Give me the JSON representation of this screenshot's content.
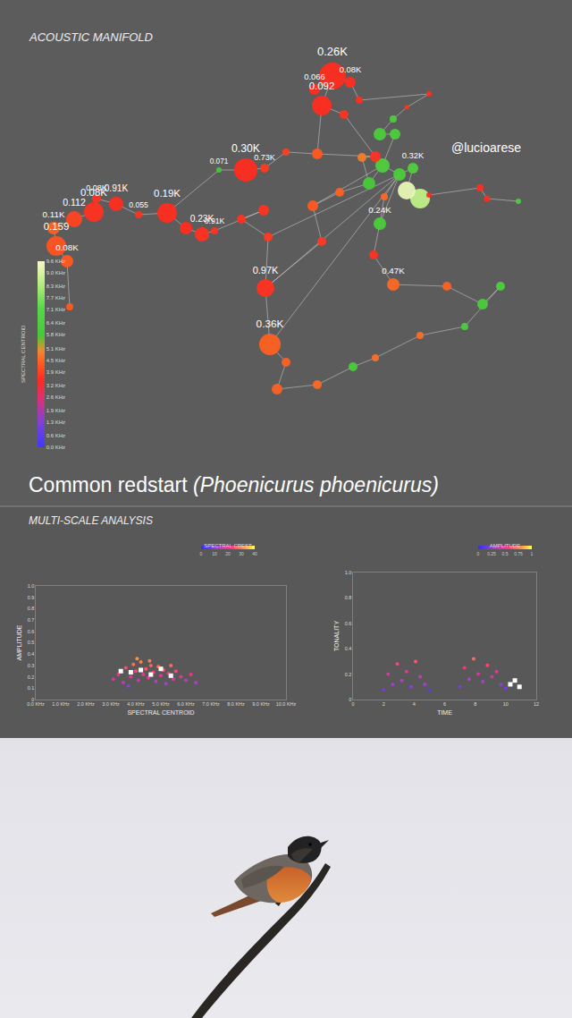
{
  "caption": [
    "Common redstart",
    "(Phoenicurus phoenicurus)"
  ],
  "section_title": "MULTI-SCALE ANALYSIS",
  "chart_data": [
    {
      "type": "network",
      "title": "ACOUSTIC MANIFOLD",
      "annotations": [
        "@lucioarese"
      ],
      "xlim": [
        0,
        640
      ],
      "ylim": [
        565,
        0
      ],
      "tick_labels": false,
      "grid": false,
      "x": [
        372,
        360,
        352,
        392,
        385,
        402,
        480,
        455,
        440,
        425,
        442,
        428,
        447,
        470,
        455,
        413,
        462,
        420,
        480,
        537,
        545,
        580,
        355,
        405,
        320,
        275,
        296,
        245,
        187,
        208,
        226,
        240,
        155,
        130,
        105,
        83,
        63,
        75,
        78,
        60,
        108,
        295,
        270,
        300,
        297,
        350,
        380,
        360,
        425,
        418,
        302,
        320,
        310,
        440,
        500,
        540,
        560,
        520,
        470,
        420,
        395,
        355,
        430
      ],
      "y": [
        85,
        118,
        100,
        92,
        128,
        112,
        105,
        120,
        133,
        150,
        150,
        185,
        195,
        222,
        213,
        205,
        188,
        175,
        218,
        210,
        222,
        225,
        172,
        176,
        170,
        190,
        188,
        190,
        238,
        255,
        262,
        258,
        240,
        228,
        237,
        245,
        275,
        292,
        343,
        255,
        222,
        235,
        245,
        265,
        322,
        230,
        215,
        270,
        250,
        285,
        385,
        405,
        435,
        318,
        320,
        340,
        320,
        365,
        375,
        400,
        410,
        430,
        220
      ],
      "sizes": [
        30,
        22,
        12,
        12,
        10,
        8,
        6,
        5,
        8,
        14,
        12,
        16,
        14,
        22,
        20,
        14,
        12,
        12,
        6,
        8,
        7,
        6,
        12,
        10,
        8,
        26,
        10,
        6,
        22,
        14,
        16,
        8,
        8,
        16,
        22,
        18,
        22,
        14,
        8,
        14,
        10,
        12,
        10,
        10,
        20,
        12,
        10,
        10,
        14,
        10,
        24,
        10,
        12,
        14,
        10,
        12,
        10,
        8,
        8,
        8,
        10,
        10,
        8
      ],
      "centroids": [
        3.5,
        3.5,
        3.5,
        3.5,
        3.6,
        3.5,
        3.5,
        3.6,
        6.2,
        6.0,
        6.1,
        6.3,
        6.0,
        8.6,
        9.3,
        5.8,
        6.4,
        3.6,
        3.4,
        3.5,
        3.5,
        6.0,
        4.3,
        4.8,
        3.8,
        3.5,
        3.7,
        5.8,
        3.5,
        3.5,
        3.6,
        3.6,
        3.6,
        3.5,
        3.6,
        3.9,
        4.2,
        4.3,
        4.3,
        4.4,
        3.6,
        3.6,
        3.6,
        3.7,
        3.6,
        4.3,
        4.4,
        3.7,
        6.0,
        3.6,
        4.4,
        4.4,
        4.4,
        4.5,
        4.4,
        6.0,
        6.2,
        6.0,
        4.6,
        4.6,
        6.0,
        4.5,
        4.5
      ],
      "labels": [
        "0.26K",
        "0.092",
        "0.066",
        "0.08K",
        null,
        null,
        null,
        null,
        null,
        null,
        null,
        null,
        null,
        null,
        null,
        null,
        "0.32K",
        null,
        null,
        null,
        null,
        null,
        null,
        null,
        null,
        "0.30K",
        "0.73K",
        "0.071",
        "0.19K",
        null,
        "0.23K",
        "0.91K",
        "0.055",
        "0.91K",
        "0.08K",
        "0.112",
        "0.159",
        "0.08K",
        null,
        "0.11K",
        "0.08K",
        null,
        null,
        null,
        "0.97K",
        null,
        null,
        null,
        "0.24K",
        null,
        "0.36K",
        null,
        null,
        "0.47K",
        null,
        null,
        null,
        null,
        null,
        null,
        null,
        null,
        null
      ],
      "edges": [
        [
          0,
          1
        ],
        [
          0,
          2
        ],
        [
          0,
          3
        ],
        [
          1,
          4
        ],
        [
          3,
          5
        ],
        [
          5,
          6
        ],
        [
          6,
          7
        ],
        [
          7,
          8
        ],
        [
          8,
          9
        ],
        [
          9,
          10
        ],
        [
          10,
          11
        ],
        [
          11,
          12
        ],
        [
          12,
          16
        ],
        [
          16,
          14
        ],
        [
          14,
          13
        ],
        [
          13,
          18
        ],
        [
          18,
          19
        ],
        [
          19,
          20
        ],
        [
          20,
          21
        ],
        [
          11,
          17
        ],
        [
          17,
          22
        ],
        [
          22,
          24
        ],
        [
          24,
          26
        ],
        [
          26,
          25
        ],
        [
          25,
          27
        ],
        [
          27,
          28
        ],
        [
          28,
          29
        ],
        [
          29,
          30
        ],
        [
          30,
          31
        ],
        [
          28,
          32
        ],
        [
          32,
          33
        ],
        [
          33,
          40
        ],
        [
          40,
          34
        ],
        [
          34,
          35
        ],
        [
          35,
          39
        ],
        [
          39,
          36
        ],
        [
          36,
          37
        ],
        [
          37,
          38
        ],
        [
          31,
          41
        ],
        [
          41,
          42
        ],
        [
          42,
          43
        ],
        [
          43,
          44
        ],
        [
          44,
          47
        ],
        [
          47,
          45
        ],
        [
          45,
          46
        ],
        [
          46,
          15
        ],
        [
          15,
          11
        ],
        [
          12,
          48
        ],
        [
          48,
          49
        ],
        [
          49,
          53
        ],
        [
          53,
          54
        ],
        [
          54,
          55
        ],
        [
          55,
          56
        ],
        [
          56,
          57
        ],
        [
          57,
          58
        ],
        [
          58,
          59
        ],
        [
          59,
          60
        ],
        [
          60,
          61
        ],
        [
          61,
          52
        ],
        [
          52,
          51
        ],
        [
          51,
          50
        ],
        [
          50,
          44
        ],
        [
          12,
          44
        ],
        [
          12,
          50
        ],
        [
          11,
          45
        ],
        [
          12,
          43
        ],
        [
          62,
          48
        ],
        [
          62,
          12
        ],
        [
          23,
          17
        ],
        [
          23,
          15
        ],
        [
          1,
          22
        ],
        [
          4,
          17
        ]
      ],
      "colorbar": {
        "title": "SPECTRAL CENTROID",
        "range": [
          0,
          9.6
        ],
        "ticks": [
          {
            "value": 0,
            "label": "0.0 KHz"
          },
          {
            "value": 0.6,
            "label": "0.6 KHz"
          },
          {
            "value": 1.3,
            "label": "1.3 KHz"
          },
          {
            "value": 1.9,
            "label": "1.9 KHz"
          },
          {
            "value": 2.6,
            "label": "2.6 KHz"
          },
          {
            "value": 3.2,
            "label": "3.2 KHz"
          },
          {
            "value": 3.9,
            "label": "3.9 KHz"
          },
          {
            "value": 4.5,
            "label": "4.5 KHz"
          },
          {
            "value": 5.1,
            "label": "5.1 KHz"
          },
          {
            "value": 5.8,
            "label": "5.8 KHz"
          },
          {
            "value": 6.4,
            "label": "6.4 KHz"
          },
          {
            "value": 7.1,
            "label": "7.1 KHz"
          },
          {
            "value": 7.7,
            "label": "7.7 KHz"
          },
          {
            "value": 8.3,
            "label": "8.3 KHz"
          },
          {
            "value": 9.0,
            "label": "9.0 KHz"
          },
          {
            "value": 9.6,
            "label": "9.6 KHz"
          }
        ]
      }
    },
    {
      "type": "scatter",
      "xlabel": "SPECTRAL CENTROID",
      "ylabel": "AMPLITUDE",
      "grid": false,
      "xlim": [
        0,
        10
      ],
      "xticks": [
        {
          "value": 0,
          "label": "0.0 KHz"
        },
        {
          "value": 1,
          "label": "1.0 KHz"
        },
        {
          "value": 2,
          "label": "2.0 KHz"
        },
        {
          "value": 3,
          "label": "3.0 KHz"
        },
        {
          "value": 4,
          "label": "4.0 KHz"
        },
        {
          "value": 5,
          "label": "5.0 KHz"
        },
        {
          "value": 6,
          "label": "6.0 KHz"
        },
        {
          "value": 7,
          "label": "7.0 KHz"
        },
        {
          "value": 8,
          "label": "8.0 KHz"
        },
        {
          "value": 9,
          "label": "9.0 KHz"
        },
        {
          "value": 10,
          "label": "10.0 KHz"
        }
      ],
      "ylim": [
        0,
        1
      ],
      "yticks": [
        0,
        0.1,
        0.2,
        0.3,
        0.4,
        0.5,
        0.6,
        0.7,
        0.8,
        0.9,
        {
          "value": 1,
          "label": "1.0"
        }
      ],
      "series": [
        {
          "marker": "circle",
          "x": [
            3.1,
            3.3,
            3.5,
            3.6,
            3.8,
            3.9,
            4.0,
            4.1,
            4.2,
            4.3,
            4.4,
            4.5,
            4.6,
            4.7,
            4.8,
            4.9,
            5.0,
            5.1,
            5.2,
            5.3,
            5.4,
            5.5,
            5.6,
            5.8,
            6.0,
            6.2,
            6.4,
            3.7,
            4.05,
            4.55
          ],
          "values": [
            0.18,
            0.22,
            0.15,
            0.28,
            0.2,
            0.31,
            0.25,
            0.17,
            0.33,
            0.22,
            0.27,
            0.19,
            0.3,
            0.24,
            0.16,
            0.29,
            0.21,
            0.26,
            0.14,
            0.23,
            0.3,
            0.18,
            0.25,
            0.2,
            0.17,
            0.22,
            0.15,
            0.12,
            0.36,
            0.34
          ],
          "spectral_crest": [
            18,
            22,
            15,
            25,
            20,
            28,
            24,
            16,
            30,
            21,
            26,
            19,
            27,
            23,
            14,
            29,
            20,
            25,
            12,
            22,
            28,
            17,
            24,
            19,
            15,
            21,
            13,
            10,
            32,
            30
          ]
        },
        {
          "marker": "square",
          "color": "#ffffff",
          "x": [
            3.4,
            3.8,
            4.2,
            4.6,
            5.0,
            5.4
          ],
          "values": [
            0.25,
            0.24,
            0.26,
            0.22,
            0.27,
            0.21
          ]
        }
      ],
      "colorbar": {
        "title": "SPECTRAL CREST",
        "range": [
          0,
          40
        ],
        "ticks": [
          0,
          10,
          20,
          30,
          40
        ]
      }
    },
    {
      "type": "scatter",
      "xlabel": "TIME",
      "ylabel": "TONALITY",
      "grid": false,
      "xlim": [
        0,
        12
      ],
      "xticks": [
        0,
        2,
        4,
        6,
        8,
        10,
        12
      ],
      "ylim": [
        0,
        1
      ],
      "yticks": [
        0,
        0.2,
        0.4,
        0.6,
        0.8,
        {
          "value": 1,
          "label": "1.0"
        }
      ],
      "series": [
        {
          "marker": "circle",
          "x": [
            2.0,
            2.3,
            2.6,
            2.9,
            3.2,
            3.5,
            3.8,
            4.1,
            4.4,
            4.7,
            5.0,
            7.0,
            7.3,
            7.6,
            7.9,
            8.2,
            8.5,
            8.8,
            9.1,
            9.4,
            9.7,
            10.0
          ],
          "values": [
            0.08,
            0.2,
            0.12,
            0.28,
            0.15,
            0.22,
            0.1,
            0.3,
            0.18,
            0.12,
            0.07,
            0.1,
            0.25,
            0.16,
            0.32,
            0.2,
            0.14,
            0.27,
            0.18,
            0.22,
            0.12,
            0.09
          ],
          "amplitude": [
            0.2,
            0.45,
            0.3,
            0.6,
            0.35,
            0.5,
            0.25,
            0.65,
            0.4,
            0.3,
            0.15,
            0.2,
            0.55,
            0.35,
            0.7,
            0.45,
            0.3,
            0.6,
            0.4,
            0.5,
            0.25,
            0.2
          ]
        },
        {
          "marker": "square",
          "color": "#ffffff",
          "x": [
            10.3,
            10.6,
            10.9
          ],
          "values": [
            0.12,
            0.15,
            0.1
          ]
        }
      ],
      "colorbar": {
        "title": "AMPLITUDE",
        "range": [
          0,
          1
        ],
        "ticks": [
          0,
          0.25,
          0.5,
          0.75,
          1
        ]
      }
    }
  ]
}
